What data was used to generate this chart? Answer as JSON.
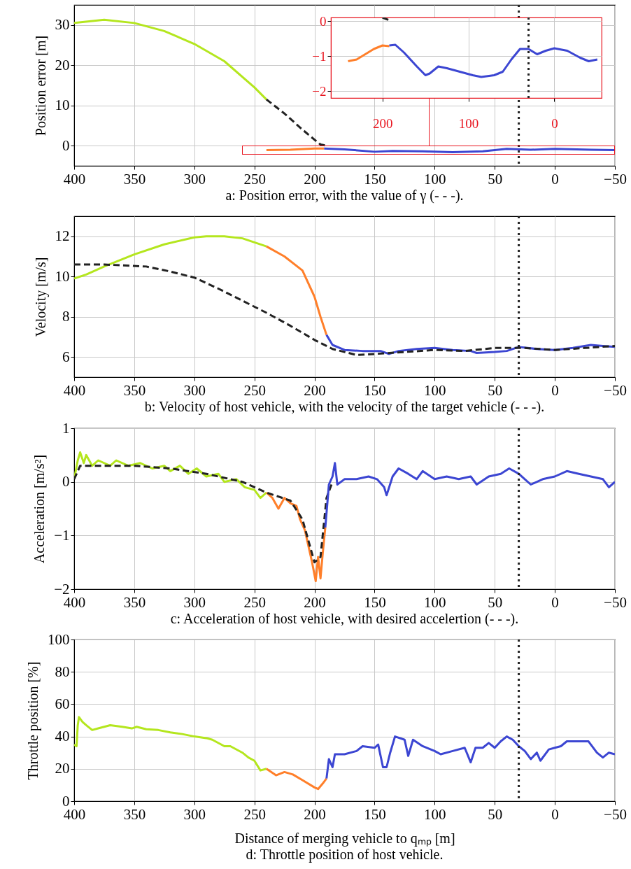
{
  "chart_data": [
    {
      "type": "line",
      "title": "a: Position error, with the value of γ (- - -).",
      "ylabel": "Position error [m]",
      "xlim": [
        400,
        -50
      ],
      "xticks": [
        400,
        350,
        300,
        250,
        200,
        150,
        100,
        50,
        0,
        -50
      ],
      "ylim": [
        -5,
        35
      ],
      "yticks": [
        0,
        10,
        20,
        30
      ],
      "grid": true,
      "series": [
        {
          "color": "#b4e61e",
          "x": [
            400,
            375,
            350,
            325,
            300,
            275,
            250,
            240
          ],
          "values": [
            30.5,
            31.3,
            30.5,
            28.5,
            25.3,
            21,
            14.5,
            11.5
          ]
        },
        {
          "color": "#222222",
          "line_style": "dashed",
          "x": [
            240,
            225,
            210,
            200,
            195,
            190
          ],
          "values": [
            11.5,
            8,
            4,
            1.5,
            0.3,
            0
          ]
        },
        {
          "color": "#ff7f2a",
          "x": [
            240,
            220,
            200,
            192
          ],
          "values": [
            -1.1,
            -1,
            -0.7,
            -0.7
          ]
        },
        {
          "color": "#3c46d2",
          "x": [
            192,
            175,
            150,
            135,
            110,
            85,
            60,
            40,
            20,
            0,
            -30,
            -50
          ],
          "values": [
            -0.7,
            -0.9,
            -1.5,
            -1.3,
            -1.4,
            -1.6,
            -1.4,
            -0.8,
            -1,
            -0.8,
            -1,
            -1.1
          ]
        }
      ],
      "ref_lines": [
        {
          "axis": "x",
          "value": 30,
          "color": "#222222",
          "line_style": "dotted"
        }
      ]
    },
    {
      "type": "line",
      "xlim": [
        260,
        -55
      ],
      "xticks": [
        200,
        100,
        0
      ],
      "ylim": [
        -2.2,
        0.1
      ],
      "yticks": [
        0,
        -1,
        -2
      ],
      "grid": true,
      "series": [
        {
          "color": "#222222",
          "line_style": "dashed",
          "x": [
            200,
            190
          ],
          "values": [
            0.1,
            0
          ]
        },
        {
          "color": "#ff7f2a",
          "x": [
            240,
            230,
            220,
            210,
            200,
            192
          ],
          "values": [
            -1.15,
            -1.1,
            -0.95,
            -0.8,
            -0.7,
            -0.72
          ]
        },
        {
          "color": "#3c46d2",
          "x": [
            192,
            185,
            175,
            160,
            150,
            145,
            135,
            125,
            110,
            95,
            85,
            70,
            60,
            50,
            40,
            30,
            20,
            10,
            0,
            -15,
            -30,
            -40,
            -50
          ],
          "values": [
            -0.7,
            -0.68,
            -0.9,
            -1.3,
            -1.55,
            -1.5,
            -1.3,
            -1.35,
            -1.45,
            -1.55,
            -1.6,
            -1.55,
            -1.45,
            -1.1,
            -0.8,
            -0.8,
            -0.95,
            -0.85,
            -0.78,
            -0.85,
            -1.05,
            -1.15,
            -1.1
          ]
        }
      ],
      "ref_lines": [
        {
          "axis": "x",
          "value": 30,
          "color": "#222222",
          "line_style": "dotted"
        }
      ]
    },
    {
      "type": "line",
      "title": "b: Velocity of host vehicle, with the velocity of the target vehicle (- - -).",
      "ylabel": "Velocity [m/s]",
      "xlim": [
        400,
        -50
      ],
      "xticks": [
        400,
        350,
        300,
        250,
        200,
        150,
        100,
        50,
        0,
        -50
      ],
      "ylim": [
        5,
        13
      ],
      "yticks": [
        6,
        8,
        10,
        12
      ],
      "grid": true,
      "series": [
        {
          "color": "#b4e61e",
          "x": [
            400,
            390,
            375,
            350,
            325,
            300,
            290,
            275,
            260,
            240
          ],
          "values": [
            9.9,
            10.1,
            10.5,
            11.1,
            11.6,
            11.95,
            12,
            12,
            11.9,
            11.5
          ]
        },
        {
          "color": "#ff7f2a",
          "x": [
            240,
            225,
            210,
            200,
            195,
            190
          ],
          "values": [
            11.5,
            11,
            10.3,
            9,
            8,
            7.1
          ]
        },
        {
          "color": "#3c46d2",
          "x": [
            190,
            185,
            175,
            160,
            145,
            138,
            130,
            115,
            100,
            85,
            70,
            65,
            50,
            40,
            30,
            15,
            0,
            -15,
            -30,
            -40,
            -50
          ],
          "values": [
            7.1,
            6.6,
            6.35,
            6.3,
            6.3,
            6.15,
            6.3,
            6.4,
            6.45,
            6.35,
            6.3,
            6.2,
            6.25,
            6.3,
            6.5,
            6.4,
            6.35,
            6.45,
            6.6,
            6.55,
            6.5
          ]
        },
        {
          "color": "#222222",
          "line_style": "dashed",
          "x": [
            400,
            375,
            340,
            320,
            300,
            280,
            260,
            240,
            220,
            200,
            185,
            165,
            150,
            125,
            100,
            75,
            50,
            25,
            0,
            -25,
            -50
          ],
          "values": [
            10.6,
            10.6,
            10.5,
            10.25,
            9.95,
            9.4,
            8.8,
            8.2,
            7.55,
            6.85,
            6.4,
            6.1,
            6.15,
            6.25,
            6.35,
            6.3,
            6.45,
            6.45,
            6.35,
            6.45,
            6.55
          ]
        }
      ],
      "ref_lines": [
        {
          "axis": "x",
          "value": 30,
          "color": "#222222",
          "line_style": "dotted"
        }
      ]
    },
    {
      "type": "line",
      "title": "c: Acceleration of host vehicle, with desired accelertion (- - -).",
      "ylabel": "Acceleration [m/s²]",
      "xlim": [
        400,
        -50
      ],
      "xticks": [
        400,
        350,
        300,
        250,
        200,
        150,
        100,
        50,
        0,
        -50
      ],
      "ylim": [
        -2,
        1
      ],
      "yticks": [
        -2,
        -1,
        0,
        1
      ],
      "grid": true,
      "series": [
        {
          "color": "#b4e61e",
          "x": [
            400,
            397,
            395,
            392,
            390,
            385,
            380,
            370,
            365,
            355,
            345,
            335,
            325,
            320,
            312,
            305,
            298,
            290,
            280,
            275,
            265,
            258,
            250,
            245,
            240
          ],
          "values": [
            0.05,
            0.4,
            0.55,
            0.35,
            0.5,
            0.3,
            0.4,
            0.3,
            0.4,
            0.3,
            0.35,
            0.25,
            0.3,
            0.2,
            0.3,
            0.15,
            0.25,
            0.1,
            0.15,
            0,
            0.05,
            -0.1,
            -0.15,
            -0.3,
            -0.2
          ]
        },
        {
          "color": "#ff7f2a",
          "x": [
            240,
            235,
            230,
            225,
            220,
            215,
            212,
            208,
            205,
            202,
            199,
            197,
            195,
            193,
            191
          ],
          "values": [
            -0.2,
            -0.3,
            -0.5,
            -0.3,
            -0.4,
            -0.45,
            -0.7,
            -0.9,
            -1.2,
            -1.5,
            -1.85,
            -1.4,
            -1.8,
            -1.3,
            -0.85
          ]
        },
        {
          "color": "#222222",
          "line_style": "dashed",
          "x": [
            400,
            395,
            385,
            350,
            320,
            290,
            260,
            240,
            220,
            210,
            200,
            195,
            190,
            185
          ],
          "values": [
            0.05,
            0.3,
            0.3,
            0.3,
            0.25,
            0.15,
            0,
            -0.2,
            -0.35,
            -0.7,
            -1.5,
            -1.4,
            -0.3,
            0
          ]
        },
        {
          "color": "#3c46d2",
          "x": [
            191,
            188,
            185,
            183,
            181,
            175,
            165,
            155,
            148,
            142,
            140,
            135,
            130,
            122,
            115,
            110,
            100,
            90,
            80,
            70,
            65,
            55,
            45,
            38,
            30,
            25,
            20,
            10,
            0,
            -10,
            -20,
            -30,
            -40,
            -45,
            -50
          ],
          "values": [
            -0.85,
            -0.05,
            0.1,
            0.35,
            -0.05,
            0.05,
            0.05,
            0.1,
            0.05,
            -0.1,
            -0.25,
            0.1,
            0.25,
            0.15,
            0.05,
            0.2,
            0.05,
            0.1,
            0.05,
            0.1,
            -0.05,
            0.1,
            0.15,
            0.25,
            0.15,
            0.05,
            -0.05,
            0.05,
            0.1,
            0.2,
            0.15,
            0.1,
            0.05,
            -0.1,
            0
          ]
        }
      ],
      "ref_lines": [
        {
          "axis": "x",
          "value": 30,
          "color": "#222222",
          "line_style": "dotted"
        }
      ]
    },
    {
      "type": "line",
      "title": "d: Throttle position of host vehicle.",
      "xlabel": "Distance of merging vehicle to qₘₚ [m]",
      "ylabel": "Throttle position [%]",
      "xlim": [
        400,
        -50
      ],
      "xticks": [
        400,
        350,
        300,
        250,
        200,
        150,
        100,
        50,
        0,
        -50
      ],
      "ylim": [
        0,
        100
      ],
      "yticks": [
        0,
        20,
        40,
        60,
        80,
        100
      ],
      "grid": true,
      "series": [
        {
          "color": "#b4e61e",
          "x": [
            400,
            398,
            397,
            396,
            393,
            390,
            385,
            380,
            375,
            370,
            360,
            352,
            348,
            340,
            330,
            320,
            310,
            300,
            290,
            285,
            275,
            270,
            260,
            255,
            250,
            245,
            240
          ],
          "values": [
            35,
            34,
            47,
            52,
            49,
            47,
            44,
            45,
            46,
            47,
            46,
            45,
            46,
            44.5,
            44,
            42.5,
            41.5,
            40,
            39,
            38,
            34,
            34,
            30,
            27,
            25,
            19,
            20
          ]
        },
        {
          "color": "#ff7f2a",
          "x": [
            240,
            232,
            225,
            218,
            210,
            200,
            197,
            193,
            190
          ],
          "values": [
            20,
            16,
            18,
            16.5,
            13,
            8.5,
            7.5,
            11,
            14
          ]
        },
        {
          "color": "#3c46d2",
          "x": [
            190,
            188,
            185,
            183,
            175,
            165,
            160,
            150,
            147,
            143,
            140,
            137,
            133,
            125,
            122,
            118,
            110,
            100,
            95,
            85,
            75,
            70,
            66,
            60,
            55,
            50,
            45,
            40,
            35,
            30,
            25,
            20,
            15,
            12,
            5,
            0,
            -5,
            -10,
            -20,
            -28,
            -35,
            -40,
            -45,
            -50
          ],
          "values": [
            14,
            26,
            21,
            29,
            29,
            31,
            34,
            33,
            35,
            21,
            21,
            30,
            40,
            38,
            28,
            38,
            34,
            31,
            29,
            31,
            33,
            24,
            33,
            33,
            36,
            33,
            37,
            40,
            38,
            34,
            31,
            26,
            30,
            25,
            32,
            33,
            34,
            37,
            37,
            37,
            30,
            27,
            30,
            29
          ]
        }
      ],
      "ref_lines": [
        {
          "axis": "x",
          "value": 30,
          "color": "#222222",
          "line_style": "dotted"
        }
      ]
    }
  ]
}
